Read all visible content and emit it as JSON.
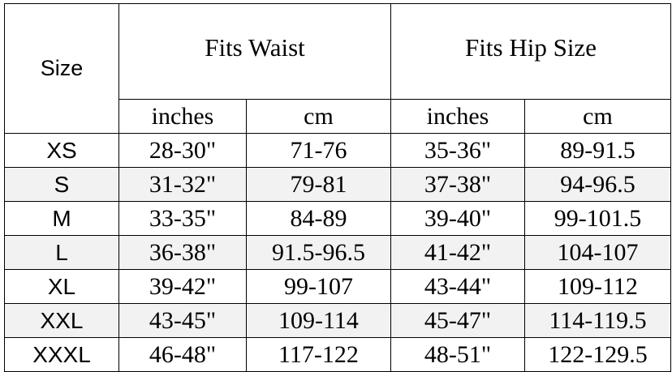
{
  "header": {
    "size": "Size",
    "groups": [
      "Fits Waist",
      "Fits Hip Size"
    ],
    "units": [
      "inches",
      "cm",
      "inches",
      "cm"
    ]
  },
  "table": {
    "rows": [
      [
        "XS",
        "28-30\"",
        "71-76",
        "35-36\"",
        "89-91.5"
      ],
      [
        "S",
        "31-32\"",
        "79-81",
        "37-38\"",
        "94-96.5"
      ],
      [
        "M",
        "33-35\"",
        "84-89",
        "39-40\"",
        "99-101.5"
      ],
      [
        "L",
        "36-38\"",
        "91.5-96.5",
        "41-42\"",
        "104-107"
      ],
      [
        "XL",
        "39-42\"",
        "99-107",
        "43-44\"",
        "109-112"
      ],
      [
        "XXL",
        "43-45\"",
        "109-114",
        "45-47\"",
        "114-119.5"
      ],
      [
        "XXXL",
        "46-48\"",
        "117-122",
        "48-51\"",
        "122-129.5"
      ]
    ]
  }
}
